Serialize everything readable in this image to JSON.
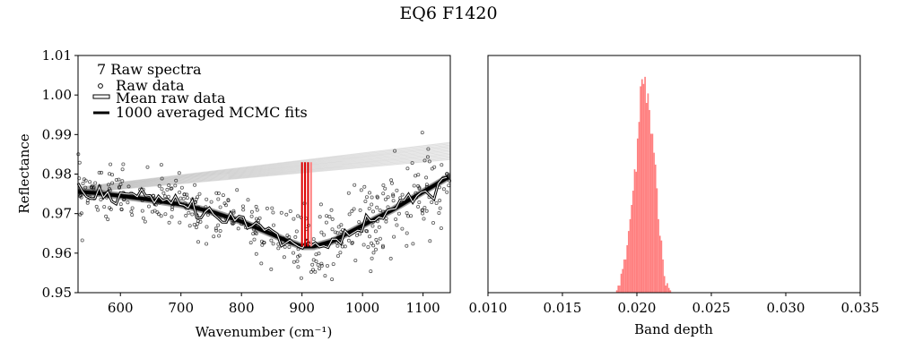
{
  "figure": {
    "suptitle": "EQ6 F1420"
  },
  "chart_data": [
    {
      "type": "line",
      "panel": "left",
      "xlabel": "Wavenumber (cm⁻¹)",
      "ylabel": "Reflectance",
      "xlim": [
        530,
        1145
      ],
      "ylim": [
        0.95,
        1.01
      ],
      "xticks": [
        600,
        700,
        800,
        900,
        1000,
        1100
      ],
      "yticks": [
        "0.95",
        "0.96",
        "0.97",
        "0.98",
        "0.99",
        "1.00",
        "1.01"
      ],
      "legend": {
        "placement": "top-left",
        "title": "7 Raw spectra",
        "entries": [
          "Raw data",
          "Mean raw data",
          "1000 averaged MCMC fits"
        ]
      },
      "series": [
        {
          "name": "1000 averaged MCMC fits",
          "kind": "fit",
          "x": [
            530,
            560,
            600,
            650,
            700,
            750,
            800,
            850,
            880,
            900,
            920,
            950,
            1000,
            1050,
            1100,
            1145
          ],
          "y": [
            0.9755,
            0.9752,
            0.9745,
            0.9735,
            0.9723,
            0.9705,
            0.968,
            0.9648,
            0.9628,
            0.9617,
            0.9617,
            0.963,
            0.967,
            0.971,
            0.9755,
            0.9795
          ]
        },
        {
          "name": "Mean raw data",
          "kind": "mean",
          "x": [
            530,
            560,
            600,
            650,
            700,
            750,
            800,
            850,
            880,
            900,
            920,
            950,
            1000,
            1050,
            1100,
            1145
          ],
          "y": [
            0.9755,
            0.9752,
            0.9745,
            0.9735,
            0.9723,
            0.9705,
            0.968,
            0.9648,
            0.9628,
            0.9617,
            0.9617,
            0.963,
            0.967,
            0.971,
            0.9755,
            0.9795
          ]
        },
        {
          "name": "Continuum",
          "kind": "continuum",
          "x": [
            530,
            1145
          ],
          "y": [
            0.976,
            0.986
          ]
        }
      ],
      "band_markers": {
        "x": [
          900,
          905,
          910,
          915
        ],
        "y_bottom": 0.9617,
        "y_top": 0.983
      },
      "scatter": {
        "name": "Raw data",
        "count": 420,
        "spread": 0.0035
      }
    },
    {
      "type": "histogram",
      "panel": "right",
      "xlabel": "Band depth",
      "xlim": [
        0.01,
        0.035
      ],
      "xticks": [
        "0.010",
        "0.015",
        "0.020",
        "0.025",
        "0.030",
        "0.035"
      ],
      "bin_width": 0.0001,
      "bin_start": 0.0186,
      "values": [
        1,
        3,
        3,
        8,
        10,
        14,
        14,
        20,
        26,
        31,
        37,
        43,
        52,
        51,
        65,
        72,
        87,
        90,
        88,
        91,
        80,
        84,
        77,
        67,
        67,
        59,
        54,
        44,
        31,
        24,
        22,
        14,
        7,
        3,
        4,
        2,
        1
      ],
      "max_count": 100,
      "color": "#ff8080"
    }
  ]
}
